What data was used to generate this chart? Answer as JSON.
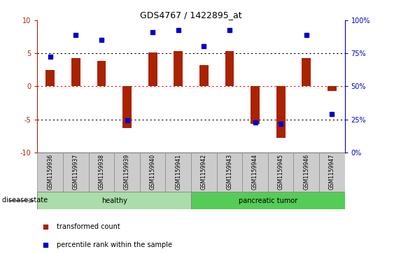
{
  "title": "GDS4767 / 1422895_at",
  "samples": [
    "GSM1159936",
    "GSM1159937",
    "GSM1159938",
    "GSM1159939",
    "GSM1159940",
    "GSM1159941",
    "GSM1159942",
    "GSM1159943",
    "GSM1159944",
    "GSM1159945",
    "GSM1159946",
    "GSM1159947"
  ],
  "bar_values": [
    2.5,
    4.3,
    3.9,
    -6.3,
    5.1,
    5.3,
    3.2,
    5.3,
    -5.7,
    -7.8,
    4.3,
    -0.7
  ],
  "blue_values": [
    4.5,
    7.8,
    7.0,
    -5.2,
    8.2,
    8.5,
    6.1,
    8.5,
    -5.5,
    -5.7,
    7.8,
    -4.2
  ],
  "healthy_count": 6,
  "tumor_count": 6,
  "healthy_color": "#aaddaa",
  "tumor_color": "#55cc55",
  "bar_color": "#aa2200",
  "blue_color": "#0000cc",
  "ylim": [
    -10,
    10
  ],
  "bar_width": 0.35,
  "label_box_color": "#cccccc",
  "label_box_edge": "#888888"
}
